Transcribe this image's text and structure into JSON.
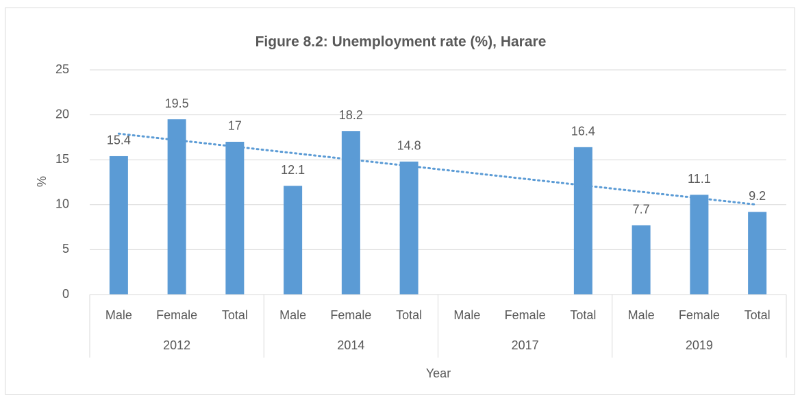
{
  "chart_data": {
    "type": "bar",
    "title": "Figure 8.2: Unemployment rate (%), Harare",
    "x_label": "Year",
    "y_label": "%",
    "categories": [
      "Male",
      "Female",
      "Total",
      "Male",
      "Female",
      "Total",
      "Male",
      "Female",
      "Total",
      "Male",
      "Female",
      "Total"
    ],
    "groups": [
      "2012",
      "2014",
      "2017",
      "2019"
    ],
    "values": [
      15.4,
      19.5,
      17,
      12.1,
      18.2,
      14.8,
      null,
      null,
      16.4,
      7.7,
      11.1,
      9.2
    ],
    "color": "#5b9bd5",
    "ylim": [
      0,
      25
    ],
    "yticks": [
      0,
      5,
      10,
      15,
      20,
      25
    ],
    "grid": true,
    "trendline": {
      "start": 17.9,
      "end": 10.0
    }
  }
}
